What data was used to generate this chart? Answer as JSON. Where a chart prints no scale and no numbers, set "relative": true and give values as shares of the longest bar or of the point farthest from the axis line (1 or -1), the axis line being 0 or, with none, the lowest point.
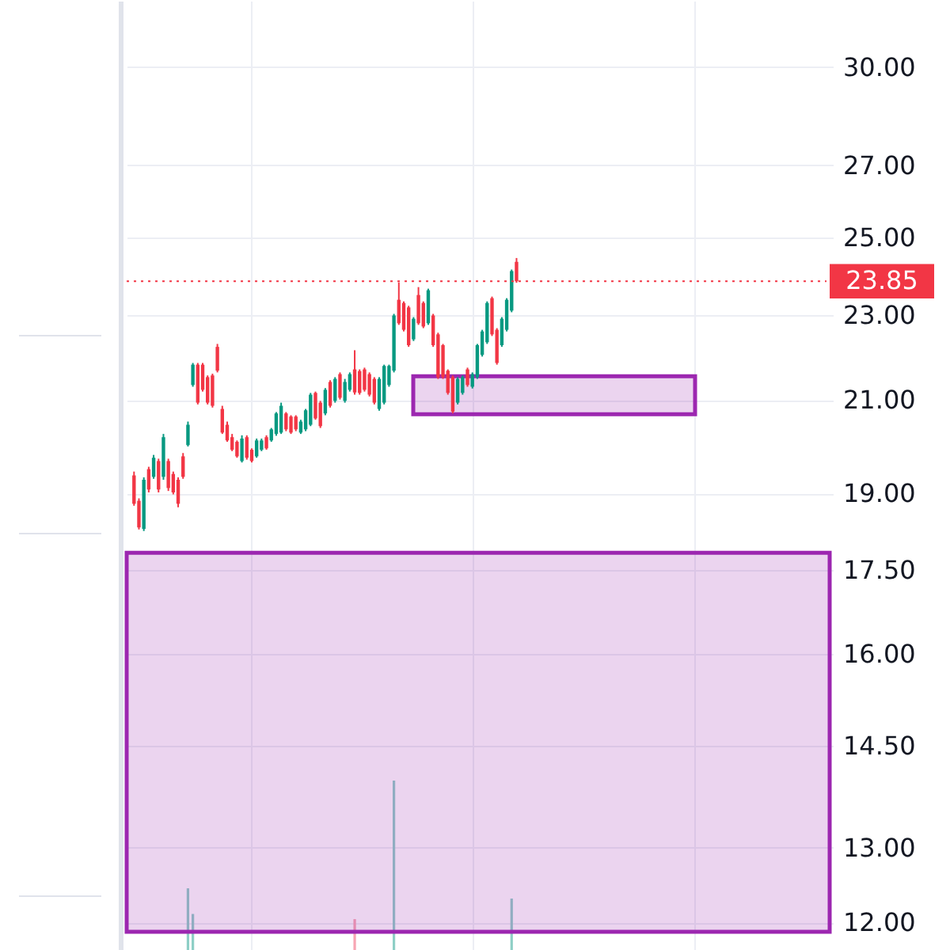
{
  "chart_data": [
    {
      "type": "candlestick",
      "categories": [
        null,
        null,
        null,
        null,
        null,
        null,
        null,
        null,
        null,
        null,
        null,
        null,
        null,
        null,
        null,
        null,
        null,
        null,
        null,
        null,
        null,
        null,
        null,
        null,
        null,
        null,
        null,
        null,
        null,
        null,
        null,
        null,
        null,
        null,
        null,
        null,
        null,
        null,
        null,
        null,
        null,
        null,
        null,
        null,
        null,
        null,
        null,
        null,
        null,
        null,
        null,
        null,
        null,
        null,
        null,
        null,
        null,
        null,
        null,
        null,
        null,
        null,
        null,
        null,
        null,
        null,
        null,
        null,
        null,
        null,
        null,
        null,
        null,
        null,
        null,
        null,
        null,
        null,
        null,
        null,
        null,
        null,
        null,
        null,
        null,
        null,
        null,
        null,
        null,
        null,
        null,
        null,
        null,
        null,
        null,
        null,
        null,
        null,
        null,
        null,
        null,
        null,
        null,
        null,
        null,
        null,
        null,
        null,
        null,
        null,
        null,
        null,
        null,
        null,
        null,
        null,
        null,
        null,
        null,
        null,
        null,
        null,
        null,
        null,
        null,
        null,
        null,
        null,
        null,
        null,
        null,
        null,
        null,
        null,
        null,
        null,
        null,
        null,
        null,
        null,
        null,
        null
      ],
      "ohlc": [
        [
          19.37,
          19.45,
          18.75,
          18.79
        ],
        [
          18.85,
          18.9,
          18.28,
          18.32
        ],
        [
          18.29,
          19.33,
          18.25,
          19.28
        ],
        [
          19.5,
          19.55,
          19.02,
          19.08
        ],
        [
          19.34,
          19.8,
          19.3,
          19.74
        ],
        [
          19.67,
          19.72,
          19.02,
          19.08
        ],
        [
          19.34,
          20.25,
          19.28,
          20.18
        ],
        [
          19.67,
          19.72,
          19.05,
          19.11
        ],
        [
          19.4,
          19.45,
          18.98,
          19.02
        ],
        [
          19.28,
          19.33,
          18.72,
          18.79
        ],
        [
          19.77,
          19.84,
          19.3,
          19.34
        ],
        [
          20.01,
          20.52,
          19.98,
          20.45
        ],
        [
          21.34,
          21.85,
          21.3,
          21.81
        ],
        [
          21.81,
          21.85,
          20.9,
          20.94
        ],
        [
          21.81,
          21.85,
          21.19,
          21.23
        ],
        [
          21.52,
          21.56,
          20.9,
          20.94
        ],
        [
          21.56,
          21.6,
          20.83,
          20.87
        ],
        [
          22.23,
          22.3,
          21.63,
          21.67
        ],
        [
          20.8,
          20.87,
          20.25,
          20.28
        ],
        [
          20.45,
          20.52,
          20.08,
          20.11
        ],
        [
          20.18,
          20.25,
          19.88,
          19.91
        ],
        [
          20.08,
          20.11,
          19.74,
          19.77
        ],
        [
          19.67,
          20.22,
          19.64,
          20.15
        ],
        [
          20.18,
          20.22,
          19.7,
          19.74
        ],
        [
          19.91,
          19.94,
          19.64,
          19.67
        ],
        [
          19.77,
          20.15,
          19.74,
          20.11
        ],
        [
          19.91,
          20.15,
          19.88,
          20.11
        ],
        [
          20.18,
          20.22,
          19.91,
          19.94
        ],
        [
          20.11,
          20.38,
          20.08,
          20.35
        ],
        [
          20.25,
          20.73,
          20.21,
          20.7
        ],
        [
          20.28,
          20.94,
          20.25,
          20.87
        ],
        [
          20.7,
          20.73,
          20.31,
          20.35
        ],
        [
          20.63,
          20.66,
          20.25,
          20.28
        ],
        [
          20.63,
          20.66,
          20.31,
          20.35
        ],
        [
          20.28,
          20.56,
          20.25,
          20.52
        ],
        [
          20.35,
          20.8,
          20.31,
          20.77
        ],
        [
          20.45,
          21.16,
          20.42,
          21.12
        ],
        [
          21.16,
          21.19,
          20.56,
          20.59
        ],
        [
          20.94,
          20.98,
          20.38,
          20.42
        ],
        [
          20.7,
          21.27,
          20.66,
          21.23
        ],
        [
          21.41,
          21.45,
          20.83,
          20.87
        ],
        [
          20.98,
          21.52,
          20.94,
          21.48
        ],
        [
          21.59,
          21.63,
          21.01,
          21.05
        ],
        [
          20.98,
          21.48,
          20.94,
          21.41
        ],
        [
          21.23,
          21.63,
          21.19,
          21.59
        ],
        [
          21.7,
          22.15,
          21.12,
          21.17
        ],
        [
          21.66,
          21.7,
          21.12,
          21.16
        ],
        [
          21.7,
          21.74,
          21.19,
          21.23
        ],
        [
          21.59,
          21.63,
          21.08,
          21.12
        ],
        [
          21.48,
          21.52,
          20.9,
          20.94
        ],
        [
          20.8,
          21.52,
          20.76,
          21.48
        ],
        [
          20.94,
          21.81,
          20.9,
          21.78
        ],
        [
          21.34,
          21.81,
          21.3,
          21.78
        ],
        [
          21.67,
          23.03,
          21.63,
          22.99
        ],
        [
          23.38,
          23.82,
          22.76,
          22.8
        ],
        [
          23.3,
          23.34,
          22.6,
          22.64
        ],
        [
          23.19,
          23.23,
          22.23,
          22.27
        ],
        [
          22.41,
          22.95,
          22.37,
          22.91
        ],
        [
          23.5,
          23.7,
          22.76,
          22.8
        ],
        [
          23.3,
          23.34,
          22.68,
          22.72
        ],
        [
          22.8,
          23.66,
          22.76,
          23.62
        ],
        [
          22.99,
          23.03,
          22.23,
          22.27
        ],
        [
          22.53,
          22.57,
          21.48,
          21.52
        ],
        [
          22.27,
          22.3,
          21.48,
          21.52
        ],
        [
          21.67,
          21.7,
          21.12,
          21.16
        ],
        [
          21.52,
          21.56,
          20.7,
          20.74
        ],
        [
          20.94,
          21.52,
          20.9,
          21.48
        ],
        [
          21.16,
          21.56,
          21.12,
          21.52
        ],
        [
          21.7,
          21.74,
          21.3,
          21.34
        ],
        [
          21.3,
          21.63,
          21.26,
          21.59
        ],
        [
          21.52,
          22.3,
          21.48,
          22.27
        ],
        [
          22.04,
          22.64,
          22.0,
          22.6
        ],
        [
          22.34,
          23.34,
          22.3,
          23.3
        ],
        [
          23.42,
          23.46,
          22.49,
          22.53
        ],
        [
          22.64,
          22.68,
          21.81,
          21.85
        ],
        [
          22.27,
          22.95,
          22.23,
          22.91
        ],
        [
          22.64,
          23.42,
          22.6,
          23.38
        ],
        [
          23.11,
          24.15,
          23.07,
          24.11
        ],
        [
          24.35,
          24.45,
          23.81,
          23.85
        ],
        null,
        null,
        null,
        null,
        null,
        null,
        null,
        null,
        null,
        null,
        null,
        null,
        null,
        null,
        null,
        null,
        null,
        null,
        null,
        null,
        null,
        null,
        null,
        null,
        null,
        null,
        null,
        null,
        null,
        null,
        null,
        null,
        null,
        null,
        null,
        null,
        null,
        null,
        null,
        null,
        null,
        null,
        null,
        null,
        null,
        null,
        null,
        null,
        null,
        null,
        null,
        null,
        null,
        null,
        null,
        null,
        null,
        null,
        null,
        null,
        null,
        null,
        null
      ],
      "colors": [
        "#f23645",
        "#f23645",
        "#089981",
        "#f23645",
        "#089981",
        "#f23645",
        "#089981",
        "#f23645",
        "#f23645",
        "#f23645",
        "#f23645",
        "#089981",
        "#089981",
        "#f23645",
        "#f23645",
        "#f23645",
        "#f23645",
        "#f23645",
        "#f23645",
        "#f23645",
        "#f23645",
        "#f23645",
        "#089981",
        "#f23645",
        "#f23645",
        "#089981",
        "#089981",
        "#f23645",
        "#089981",
        "#089981",
        "#089981",
        "#f23645",
        "#f23645",
        "#f23645",
        "#089981",
        "#089981",
        "#089981",
        "#f23645",
        "#f23645",
        "#089981",
        "#f23645",
        "#089981",
        "#f23645",
        "#089981",
        "#089981",
        "#f23645",
        "#f23645",
        "#f23645",
        "#f23645",
        "#f23645",
        "#089981",
        "#089981",
        "#089981",
        "#089981",
        "#f23645",
        "#f23645",
        "#f23645",
        "#089981",
        "#f23645",
        "#f23645",
        "#089981",
        "#f23645",
        "#f23645",
        "#f23645",
        "#f23645",
        "#f23645",
        "#089981",
        "#089981",
        "#f23645",
        "#089981",
        "#089981",
        "#089981",
        "#089981",
        "#f23645",
        "#f23645",
        "#089981",
        "#089981",
        "#089981",
        "#f23645",
        null,
        null,
        null,
        null,
        null,
        null,
        null,
        null,
        null,
        null,
        null,
        null,
        null,
        null,
        null,
        null,
        null,
        null,
        null,
        null,
        null,
        null,
        null,
        null,
        null,
        null,
        null,
        null,
        null,
        null,
        null,
        null,
        null,
        null,
        null,
        null,
        null,
        null,
        null,
        null,
        null,
        null,
        null,
        null,
        null,
        null,
        null,
        null,
        null,
        null,
        null,
        null,
        null,
        null,
        null,
        null,
        null,
        null,
        null,
        null,
        null,
        null,
        null
      ],
      "ylim": [
        11.63,
        32.18
      ],
      "yticks": [
        {
          "value": 30,
          "label": "30.00"
        },
        {
          "value": 27,
          "label": "27.00"
        },
        {
          "value": 25,
          "label": "25.00"
        },
        {
          "value": 23,
          "label": "23.00"
        },
        {
          "value": 21,
          "label": "21.00"
        },
        {
          "value": 19,
          "label": "19.00"
        },
        {
          "value": 17.5,
          "label": "17.50"
        },
        {
          "value": 16,
          "label": "16.00"
        },
        {
          "value": 14.5,
          "label": "14.50"
        },
        {
          "value": 13,
          "label": "13.00"
        },
        {
          "value": 12,
          "label": "12.00"
        }
      ],
      "log": true,
      "grid": true,
      "tick_labels": "y",
      "ref_lines": [
        {
          "axis": "y",
          "value": 23.85,
          "label": "23.85",
          "color": "#f23645",
          "line_style": "dotted"
        }
      ],
      "bands": [
        {
          "axis": "y",
          "from": 11.88,
          "to": 17.83,
          "color": "#9c27b0"
        },
        {
          "axis": "y",
          "from": 20.68,
          "to": 21.54,
          "color": "#9c27b0"
        }
      ]
    },
    {
      "type": "bar",
      "relative": true,
      "categories": [
        null,
        null,
        null,
        null,
        null,
        null,
        null,
        null,
        null,
        null,
        null,
        null,
        null,
        null,
        null,
        null,
        null,
        null,
        null,
        null,
        null,
        null,
        null,
        null,
        null,
        null,
        null,
        null,
        null,
        null,
        null,
        null,
        null,
        null,
        null,
        null,
        null,
        null,
        null,
        null,
        null,
        null,
        null,
        null,
        null,
        null,
        null,
        null,
        null,
        null,
        null,
        null,
        null,
        null,
        null,
        null,
        null,
        null,
        null,
        null,
        null,
        null,
        null,
        null,
        null,
        null,
        null,
        null,
        null,
        null,
        null,
        null,
        null,
        null,
        null,
        null,
        null,
        null,
        null,
        null,
        null,
        null,
        null,
        null,
        null,
        null,
        null,
        null,
        null,
        null,
        null,
        null,
        null,
        null,
        null,
        null,
        null,
        null,
        null,
        null,
        null,
        null,
        null,
        null,
        null,
        null,
        null,
        null,
        null,
        null,
        null,
        null,
        null,
        null,
        null,
        null,
        null,
        null,
        null,
        null,
        null,
        null,
        null,
        null,
        null,
        null,
        null,
        null,
        null,
        null,
        null,
        null,
        null,
        null,
        null,
        null,
        null,
        null,
        null,
        null,
        null,
        null
      ],
      "values": [
        null,
        null,
        null,
        null,
        null,
        null,
        null,
        null,
        null,
        null,
        null,
        0.37,
        0.22,
        null,
        null,
        null,
        null,
        null,
        null,
        null,
        null,
        null,
        null,
        null,
        null,
        null,
        null,
        null,
        null,
        null,
        null,
        null,
        null,
        null,
        null,
        null,
        null,
        null,
        null,
        null,
        null,
        null,
        null,
        null,
        null,
        0.19,
        null,
        null,
        null,
        null,
        null,
        null,
        null,
        1,
        null,
        null,
        null,
        null,
        null,
        null,
        null,
        null,
        null,
        null,
        null,
        null,
        null,
        null,
        null,
        null,
        null,
        null,
        null,
        null,
        null,
        null,
        null,
        0.31,
        null,
        null,
        null,
        null,
        null,
        null,
        null,
        null,
        null,
        null,
        null,
        null,
        null,
        null,
        null,
        null,
        null,
        null,
        null,
        null,
        null,
        null,
        null,
        null,
        null,
        null,
        null,
        null,
        null,
        null,
        null,
        null,
        null,
        null,
        null,
        null,
        null,
        null,
        null,
        null,
        null,
        null,
        null,
        null,
        null,
        null,
        null,
        null,
        null,
        null,
        null,
        null,
        null,
        null,
        null,
        null,
        null,
        null,
        null,
        null,
        null,
        null,
        null,
        null
      ],
      "colors": [
        null,
        null,
        null,
        null,
        null,
        null,
        null,
        null,
        null,
        null,
        null,
        "#8ecfc6",
        "#8ecfc6",
        null,
        null,
        null,
        null,
        null,
        null,
        null,
        null,
        null,
        null,
        null,
        null,
        null,
        null,
        null,
        null,
        null,
        null,
        null,
        null,
        null,
        null,
        null,
        null,
        null,
        null,
        null,
        null,
        null,
        null,
        null,
        null,
        "#f7a5b3",
        null,
        null,
        null,
        null,
        null,
        null,
        null,
        "#8ecfc6",
        null,
        null,
        null,
        null,
        null,
        null,
        null,
        null,
        null,
        null,
        null,
        null,
        null,
        null,
        null,
        null,
        null,
        null,
        null,
        null,
        null,
        null,
        null,
        "#8ecfc6",
        null,
        null,
        null,
        null,
        null,
        null,
        null,
        null,
        null,
        null,
        null,
        null,
        null,
        null,
        null,
        null,
        null,
        null,
        null,
        null,
        null,
        null,
        null,
        null,
        null,
        null,
        null,
        null,
        null,
        null,
        null,
        null,
        null,
        null,
        null,
        null,
        null,
        null,
        null,
        null,
        null,
        null,
        null,
        null,
        null,
        null,
        null,
        null,
        null,
        null,
        null,
        null,
        null,
        null,
        null,
        null,
        null,
        null,
        null,
        null,
        null,
        null,
        null,
        null
      ]
    }
  ]
}
